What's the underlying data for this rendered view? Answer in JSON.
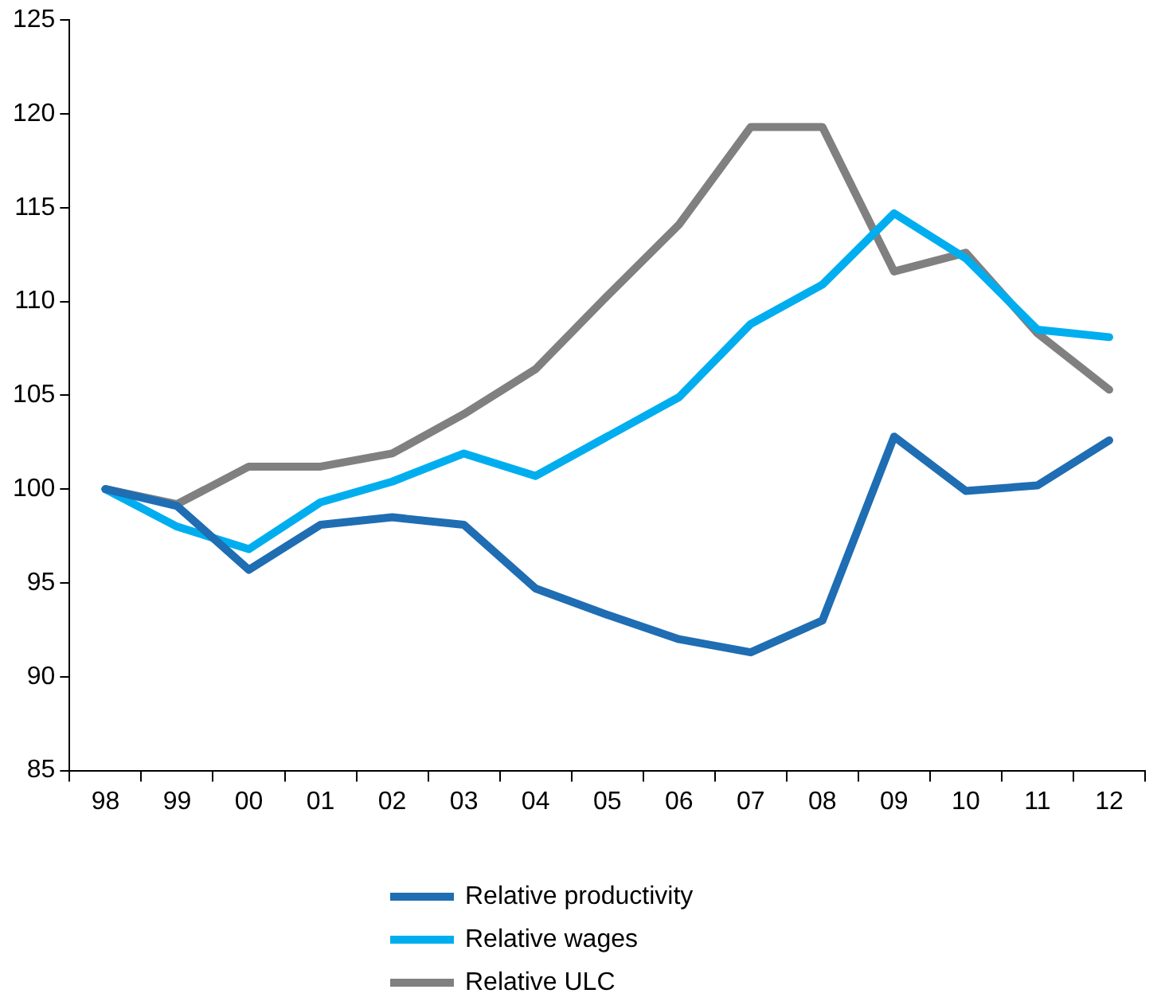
{
  "chart_data": {
    "type": "line",
    "categories": [
      "98",
      "99",
      "00",
      "01",
      "02",
      "03",
      "04",
      "05",
      "06",
      "07",
      "08",
      "09",
      "10",
      "11",
      "12"
    ],
    "series": [
      {
        "name": "Relative productivity",
        "color": "#1f6db3",
        "values": [
          100,
          99.1,
          95.7,
          98.1,
          98.5,
          98.1,
          94.7,
          93.3,
          92.0,
          91.3,
          93.0,
          102.8,
          99.9,
          100.2,
          102.6
        ]
      },
      {
        "name": "Relative wages",
        "color": "#00aeef",
        "values": [
          100,
          98.0,
          96.8,
          99.3,
          100.4,
          101.9,
          100.7,
          102.8,
          104.9,
          108.8,
          110.9,
          114.7,
          112.3,
          108.5,
          108.1
        ]
      },
      {
        "name": "Relative ULC",
        "color": "#808080",
        "values": [
          100,
          99.2,
          101.2,
          101.2,
          101.9,
          104.0,
          106.4,
          110.3,
          114.1,
          119.3,
          119.3,
          111.6,
          112.6,
          108.3,
          105.3
        ]
      }
    ],
    "ylim": [
      85,
      125
    ],
    "yticks": [
      85,
      90,
      95,
      100,
      105,
      110,
      115,
      120,
      125
    ],
    "grid": false,
    "legend": "bottom",
    "marker": "none",
    "line_style": "solid"
  }
}
